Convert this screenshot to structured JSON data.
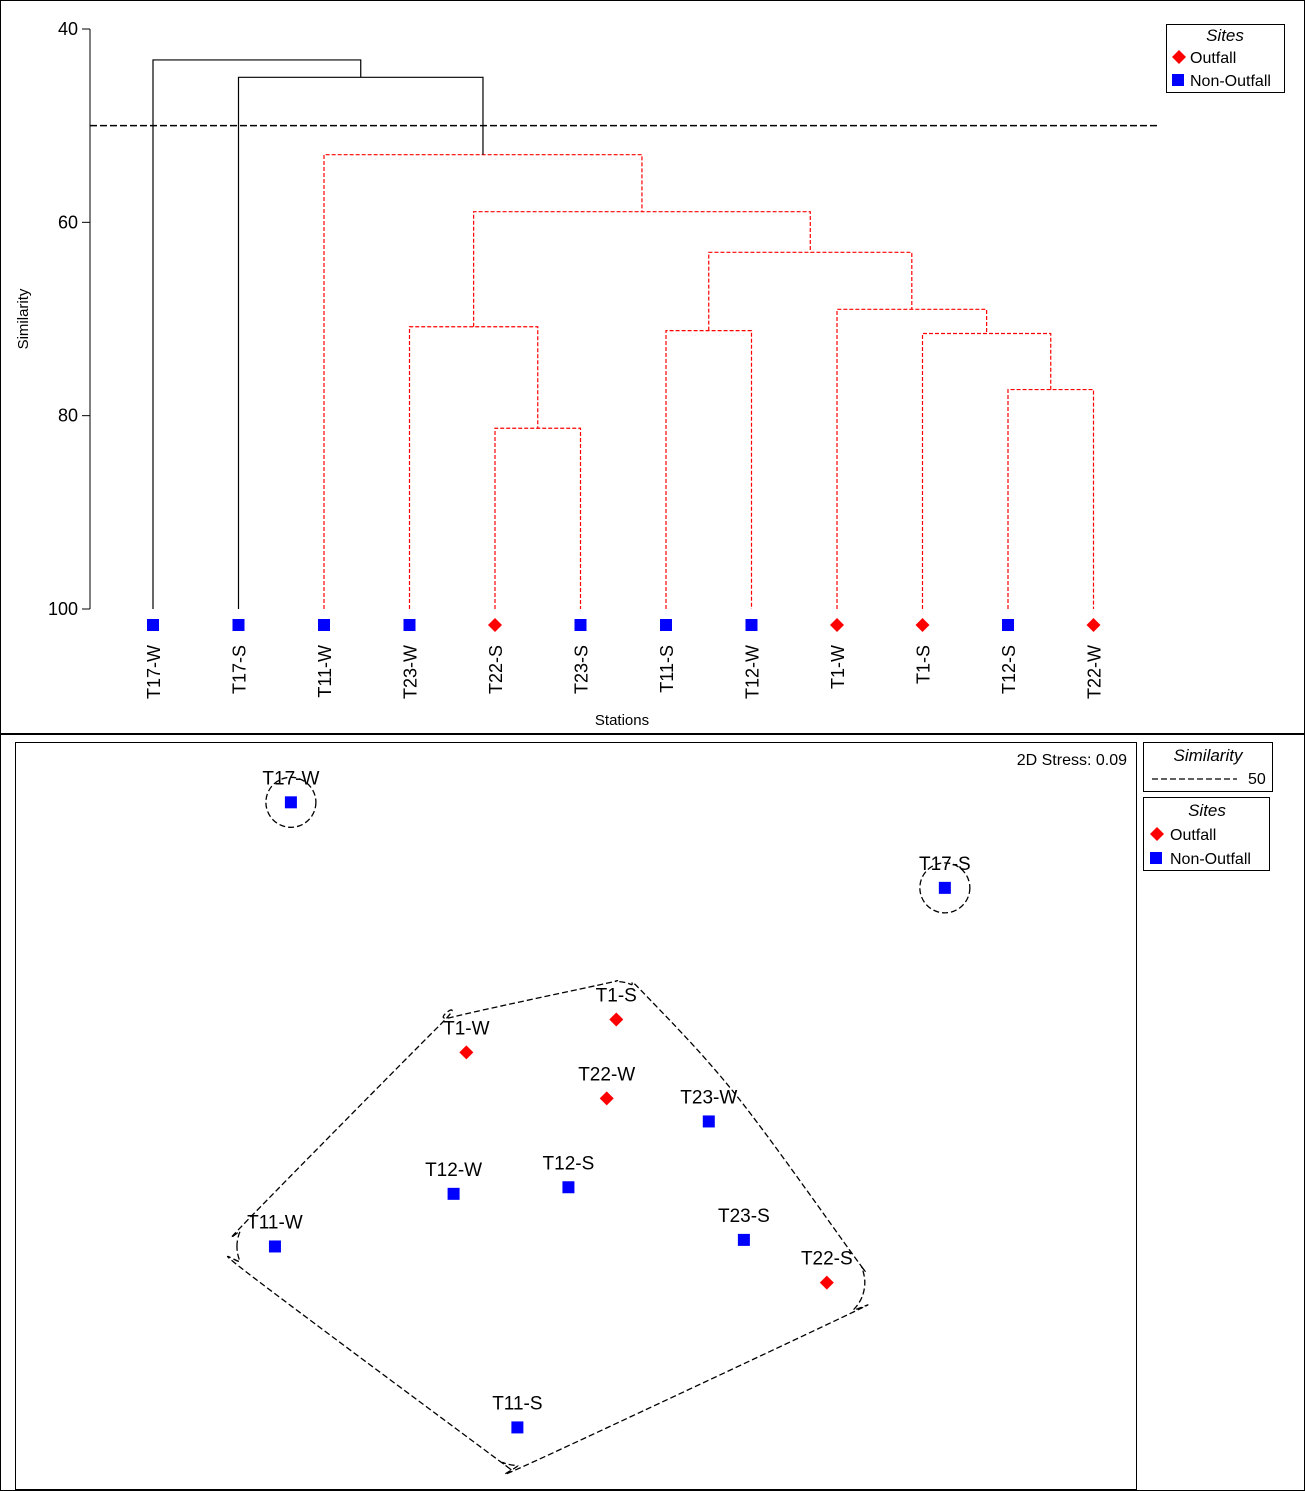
{
  "chart_data": [
    {
      "type": "dendrogram",
      "xlabel": "Stations",
      "ylabel": "Similarity",
      "ylim": [
        40,
        100
      ],
      "yticks": [
        40,
        60,
        80,
        100
      ],
      "cut_line": 50,
      "leaves": [
        {
          "label": "T17-W",
          "site": "Non-Outfall"
        },
        {
          "label": "T17-S",
          "site": "Non-Outfall"
        },
        {
          "label": "T11-W",
          "site": "Non-Outfall"
        },
        {
          "label": "T23-W",
          "site": "Non-Outfall"
        },
        {
          "label": "T22-S",
          "site": "Outfall"
        },
        {
          "label": "T23-S",
          "site": "Non-Outfall"
        },
        {
          "label": "T11-S",
          "site": "Non-Outfall"
        },
        {
          "label": "T12-W",
          "site": "Non-Outfall"
        },
        {
          "label": "T1-W",
          "site": "Outfall"
        },
        {
          "label": "T1-S",
          "site": "Outfall"
        },
        {
          "label": "T12-S",
          "site": "Non-Outfall"
        },
        {
          "label": "T22-W",
          "site": "Outfall"
        }
      ],
      "merges": [
        {
          "left": "T22-S",
          "right": "T23-S",
          "similarity": 81.3,
          "significant": true
        },
        {
          "left": "T12-S",
          "right": "T22-W",
          "similarity": 77.3,
          "significant": true
        },
        {
          "left": "T1-S",
          "right": [
            "T12-S",
            "T22-W"
          ],
          "similarity": 71.5,
          "significant": true
        },
        {
          "left": "T11-S",
          "right": "T12-W",
          "similarity": 71.2,
          "significant": true
        },
        {
          "left": "T23-W",
          "right": [
            "T22-S",
            "T23-S"
          ],
          "similarity": 70.8,
          "significant": true
        },
        {
          "left": "T1-W",
          "right": [
            "T1-S",
            "T12-S",
            "T22-W"
          ],
          "similarity": 69.0,
          "significant": true
        },
        {
          "left": [
            "T11-S",
            "T12-W"
          ],
          "right": [
            "T1-W",
            "T1-S",
            "T12-S",
            "T22-W"
          ],
          "similarity": 63.1,
          "significant": true
        },
        {
          "left": [
            "T23-W",
            "T22-S",
            "T23-S"
          ],
          "right": [
            "T11-S",
            "T12-W",
            "T1-W",
            "T1-S",
            "T12-S",
            "T22-W"
          ],
          "similarity": 58.9,
          "significant": true
        },
        {
          "left": "T11-W",
          "right": "rest",
          "similarity": 53.0,
          "significant": true
        },
        {
          "left": "T17-S",
          "right": "T11-W+rest",
          "similarity": 45.0,
          "significant": false
        },
        {
          "left": "T17-W",
          "right": "T17-S+T11-W+rest",
          "similarity": 43.2,
          "significant": false
        }
      ],
      "legend": {
        "title": "Sites",
        "entries": [
          "Outfall",
          "Non-Outfall"
        ],
        "placement": "top-right"
      }
    },
    {
      "type": "scatter",
      "subtype": "nMDS ordination",
      "stress_text": "2D Stress: 0.09",
      "points": [
        {
          "label": "T17-W",
          "site": "Non-Outfall",
          "x": -0.9,
          "y": 0.92
        },
        {
          "label": "T17-S",
          "site": "Non-Outfall",
          "x": 1.15,
          "y": 0.66
        },
        {
          "label": "T1-S",
          "site": "Outfall",
          "x": 0.12,
          "y": 0.26
        },
        {
          "label": "T1-W",
          "site": "Outfall",
          "x": -0.35,
          "y": 0.16
        },
        {
          "label": "T22-W",
          "site": "Outfall",
          "x": 0.09,
          "y": 0.02
        },
        {
          "label": "T23-W",
          "site": "Non-Outfall",
          "x": 0.41,
          "y": -0.05
        },
        {
          "label": "T12-S",
          "site": "Non-Outfall",
          "x": -0.03,
          "y": -0.25
        },
        {
          "label": "T12-W",
          "site": "Non-Outfall",
          "x": -0.39,
          "y": -0.27
        },
        {
          "label": "T11-W",
          "site": "Non-Outfall",
          "x": -0.95,
          "y": -0.43
        },
        {
          "label": "T23-S",
          "site": "Non-Outfall",
          "x": 0.52,
          "y": -0.41
        },
        {
          "label": "T22-S",
          "site": "Outfall",
          "x": 0.78,
          "y": -0.54
        },
        {
          "label": "T11-S",
          "site": "Non-Outfall",
          "x": -0.19,
          "y": -0.98
        }
      ],
      "groups": [
        [
          "T17-W"
        ],
        [
          "T17-S"
        ],
        [
          "T1-S",
          "T1-W",
          "T22-W",
          "T23-W",
          "T12-S",
          "T12-W",
          "T11-W",
          "T23-S",
          "T22-S",
          "T11-S"
        ]
      ],
      "similarity_legend": {
        "title": "Similarity",
        "value": "50"
      },
      "legend": {
        "title": "Sites",
        "entries": [
          "Outfall",
          "Non-Outfall"
        ],
        "placement": "top-right"
      }
    }
  ],
  "colors": {
    "outfall": "#ff0000",
    "non_outfall": "#0000ff",
    "significant_branch": "#ff0000",
    "nonsignificant_branch": "#000000",
    "cut_line": "#000000"
  },
  "symbols": {
    "outfall": "diamond-icon",
    "non_outfall": "square-icon"
  }
}
